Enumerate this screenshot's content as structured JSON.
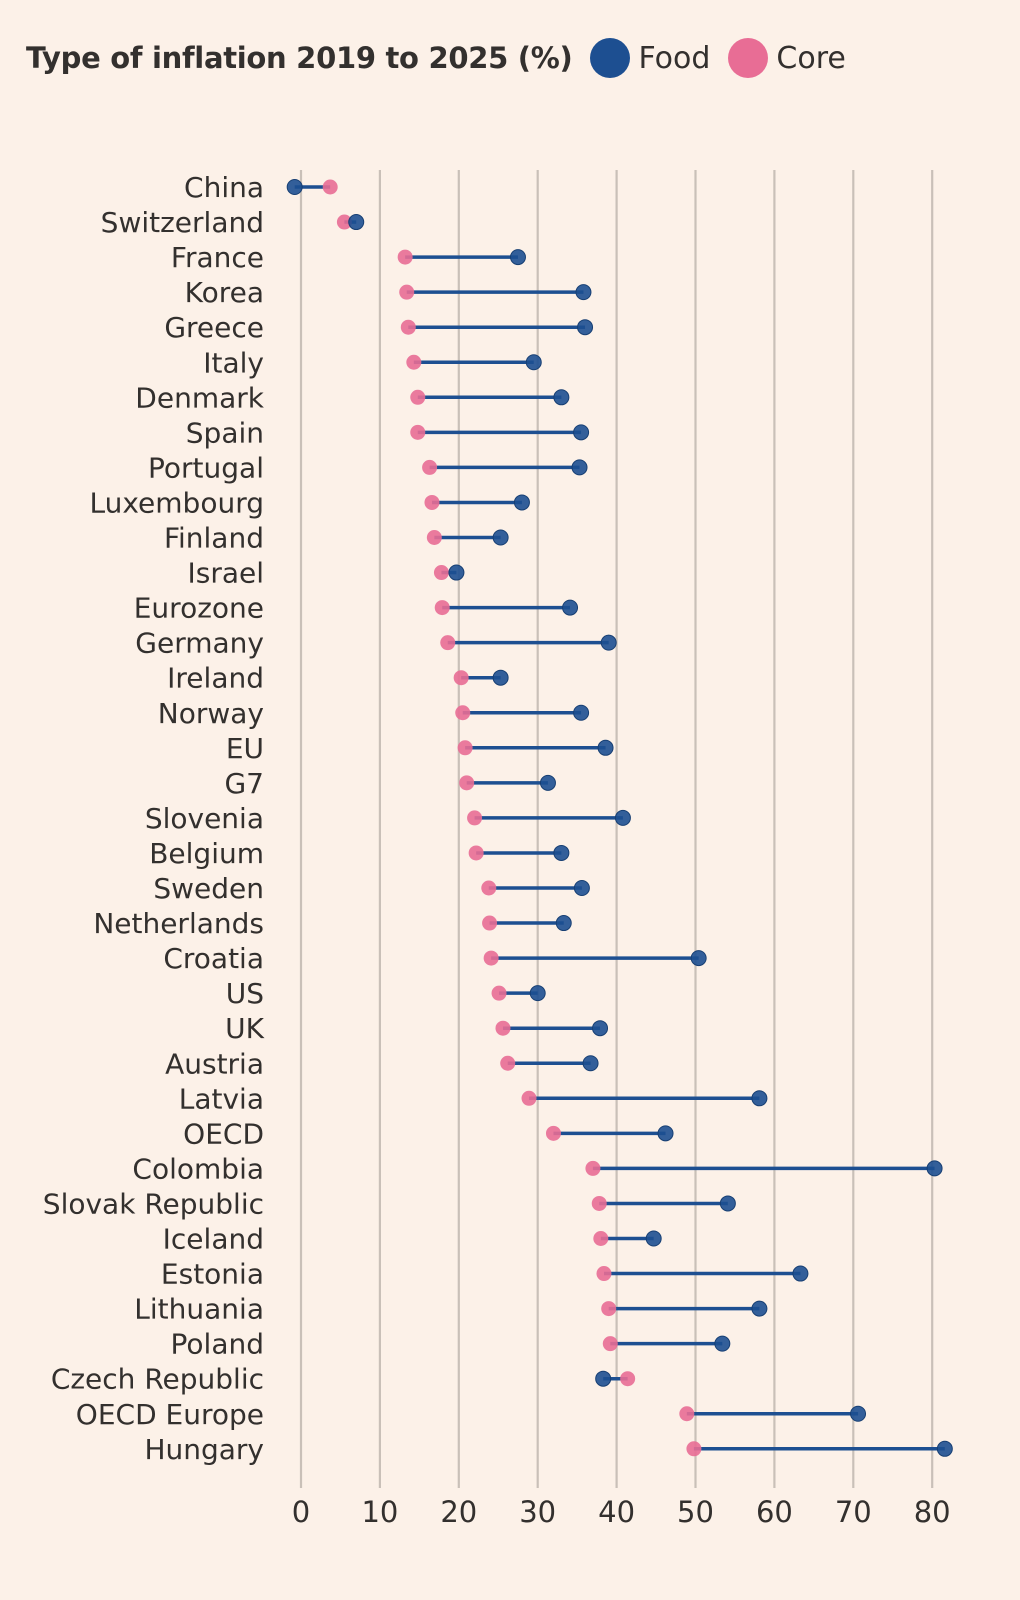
{
  "chart_data": {
    "type": "dumbbell",
    "title": "Type of inflation 2019 to 2025 (%)",
    "xlabel": "",
    "ylabel": "",
    "xlim": [
      -1,
      82
    ],
    "xticks": [
      0,
      10,
      20,
      30,
      40,
      50,
      60,
      70,
      80
    ],
    "xtick_labels": [
      "0",
      "10",
      "20",
      "30",
      "40",
      "50",
      "60",
      "70",
      "80"
    ],
    "grid": "vertical",
    "legend_position": "top",
    "colors": {
      "Food": "#1d4f91",
      "Core": "#e86d95",
      "connector": "#1d4f91"
    },
    "legend": [
      {
        "name": "Food",
        "color": "#1d4f91"
      },
      {
        "name": "Core",
        "color": "#e86d95"
      }
    ],
    "categories": [
      "China",
      "Switzerland",
      "France",
      "Korea",
      "Greece",
      "Italy",
      "Denmark",
      "Spain",
      "Portugal",
      "Luxembourg",
      "Finland",
      "Israel",
      "Eurozone",
      "Germany",
      "Ireland",
      "Norway",
      "EU",
      "G7",
      "Slovenia",
      "Belgium",
      "Sweden",
      "Netherlands",
      "Croatia",
      "US",
      "UK",
      "Austria",
      "Latvia",
      "OECD",
      "Colombia",
      "Slovak Republic",
      "Iceland",
      "Estonia",
      "Lithuania",
      "Poland",
      "Czech Republic",
      "OECD Europe",
      "Hungary"
    ],
    "series": [
      {
        "name": "Food",
        "values": [
          -0.8,
          7.0,
          27.5,
          35.8,
          36.0,
          29.5,
          33.0,
          35.5,
          35.3,
          28.0,
          25.3,
          19.7,
          34.1,
          39.0,
          25.3,
          35.5,
          38.6,
          31.3,
          40.8,
          33.0,
          35.6,
          33.3,
          50.4,
          30.0,
          37.9,
          36.7,
          58.1,
          46.2,
          80.3,
          54.1,
          44.7,
          63.3,
          58.1,
          53.4,
          38.3,
          70.6,
          81.6
        ]
      },
      {
        "name": "Core",
        "values": [
          3.7,
          5.5,
          13.2,
          13.4,
          13.6,
          14.3,
          14.8,
          14.8,
          16.3,
          16.6,
          16.9,
          17.8,
          17.9,
          18.6,
          20.3,
          20.5,
          20.8,
          21.0,
          22.0,
          22.2,
          23.8,
          23.9,
          24.1,
          25.1,
          25.6,
          26.2,
          28.9,
          32.0,
          37.0,
          37.8,
          38.0,
          38.4,
          39.0,
          39.2,
          41.4,
          48.9,
          49.8
        ]
      }
    ]
  }
}
